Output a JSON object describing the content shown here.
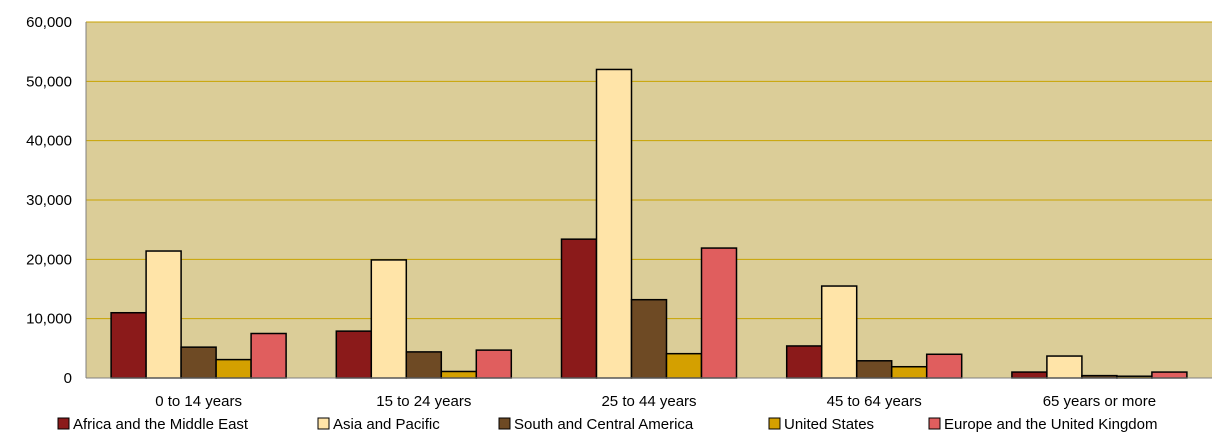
{
  "chart_data": {
    "type": "bar",
    "title": "",
    "xlabel": "",
    "ylabel": "",
    "ylim": [
      0,
      60000
    ],
    "yticks": [
      "0",
      "10,000",
      "20,000",
      "30,000",
      "40,000",
      "50,000",
      "60,000"
    ],
    "grid": "horizontal",
    "legend_position": "bottom",
    "categories": [
      "0 to 14 years",
      "15 to 24 years",
      "25 to 44 years",
      "45 to 64 years",
      "65 years or more"
    ],
    "series": [
      {
        "name": "Africa and the Middle East",
        "color": "#8B1A1A",
        "values": [
          11000,
          7900,
          23400,
          5400,
          1000
        ]
      },
      {
        "name": "Asia and Pacific",
        "color": "#FFE4A8",
        "values": [
          21400,
          19900,
          52000,
          15500,
          3700
        ]
      },
      {
        "name": "South and Central America",
        "color": "#6E4A24",
        "values": [
          5200,
          4400,
          13200,
          2900,
          400
        ]
      },
      {
        "name": "United States",
        "color": "#D4A000",
        "values": [
          3100,
          1100,
          4100,
          1900,
          300
        ]
      },
      {
        "name": "Europe and the United Kingdom",
        "color": "#E05E5E",
        "values": [
          7500,
          4700,
          21900,
          4000,
          1000
        ]
      }
    ],
    "plot_background": "#DBCD98",
    "grid_color": "#C8A200"
  }
}
